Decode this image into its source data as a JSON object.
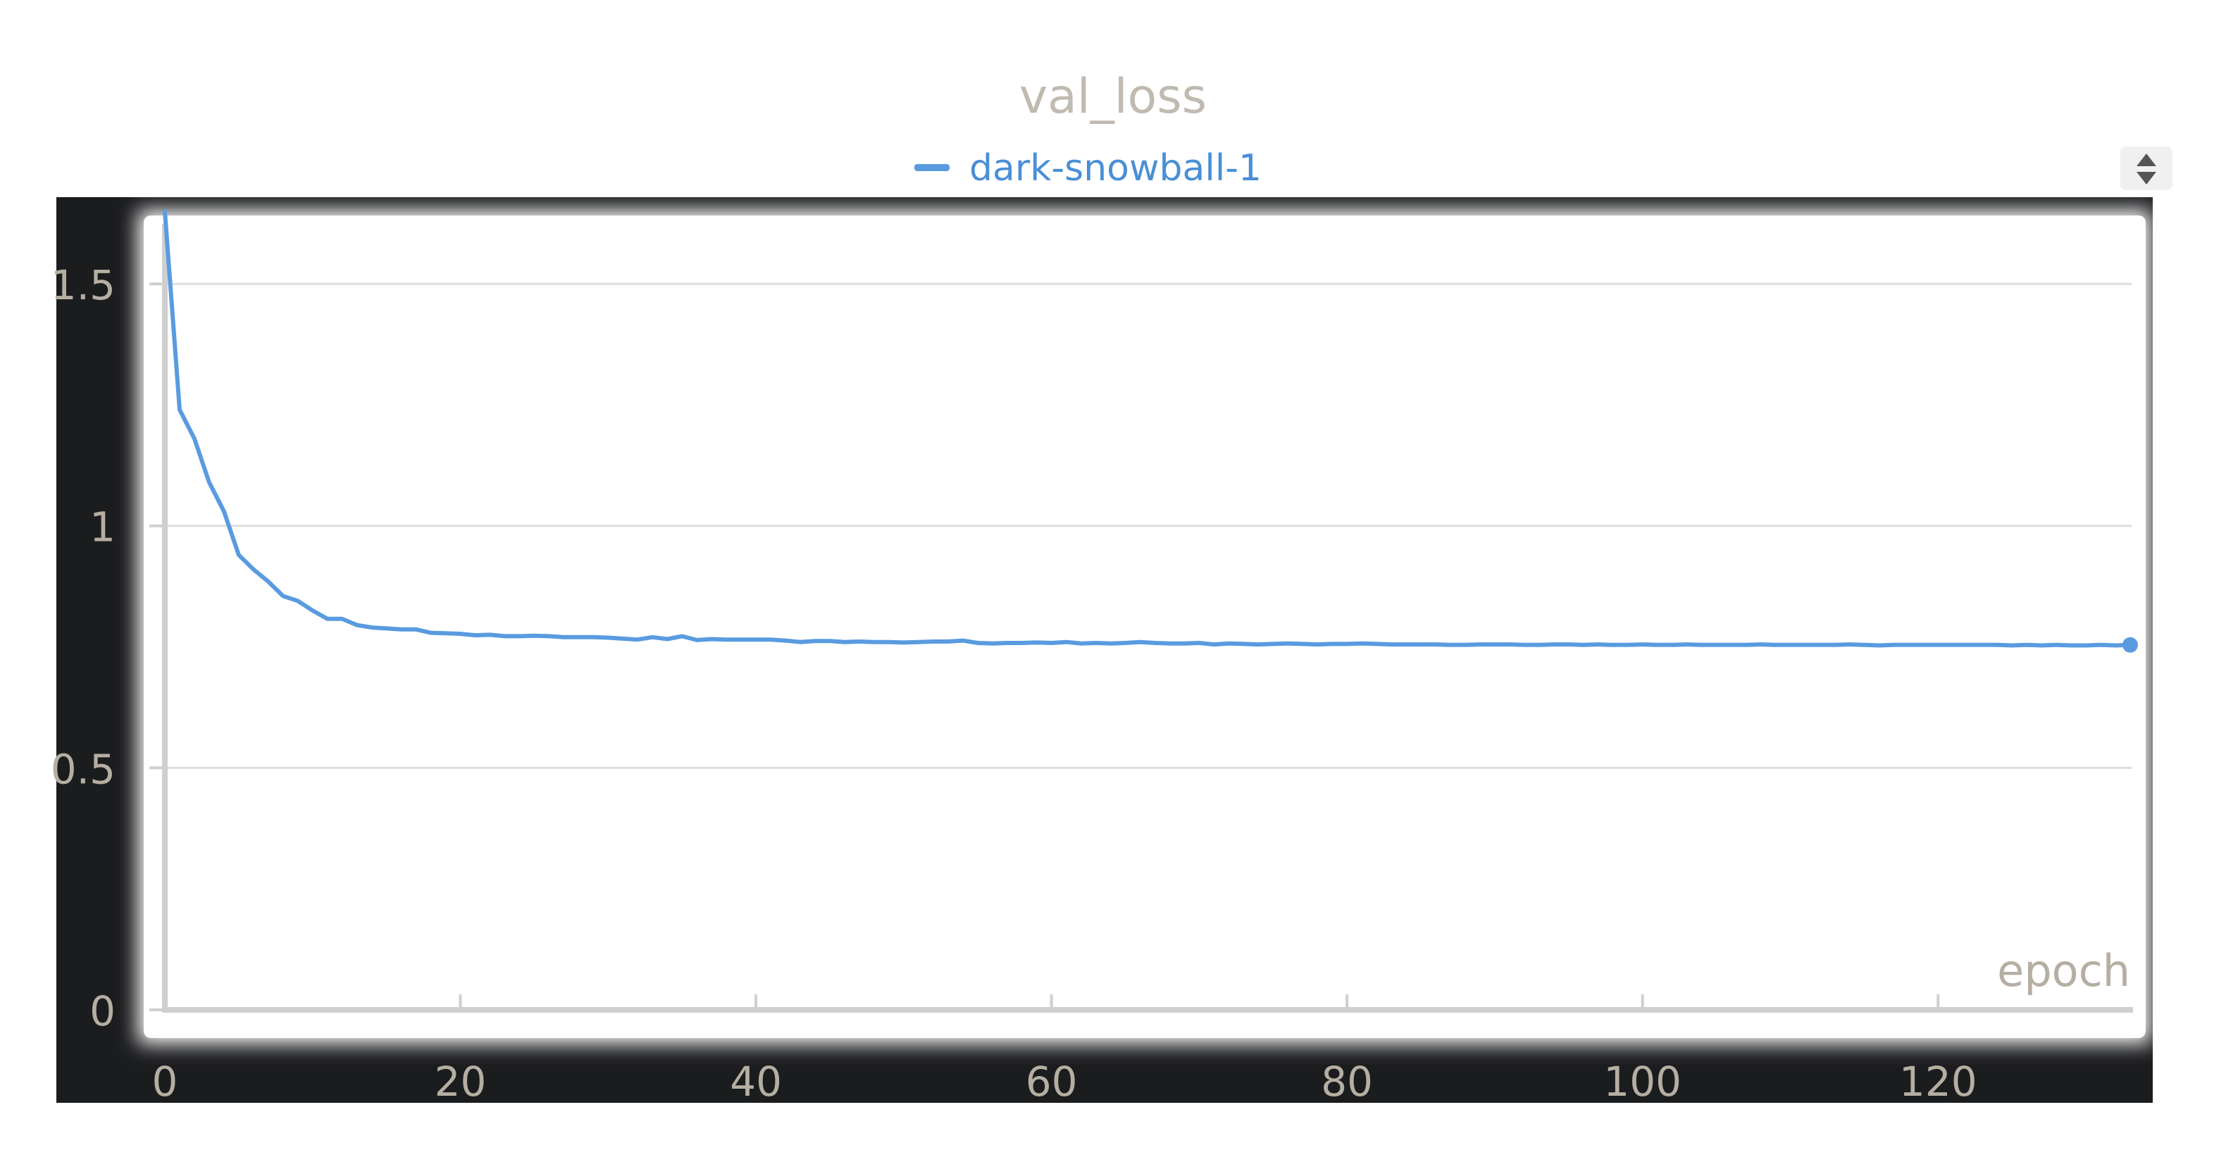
{
  "chart_data": {
    "type": "line",
    "title": "val_loss",
    "xlabel": "epoch",
    "ylabel": "",
    "xlim": [
      0,
      133
    ],
    "ylim": [
      0,
      1.65
    ],
    "xticks": [
      0,
      20,
      40,
      60,
      80,
      100,
      120
    ],
    "yticks": [
      0,
      0.5,
      1,
      1.5
    ],
    "xtick_labels": [
      "0",
      "20",
      "40",
      "60",
      "80",
      "100",
      "120"
    ],
    "ytick_labels": [
      "0",
      "0.5",
      "1",
      "1.5"
    ],
    "grid": true,
    "legend": "top-center",
    "series": [
      {
        "name": "dark-snowball-1",
        "color": "#5a9be0",
        "x": [
          0,
          1,
          2,
          3,
          4,
          5,
          6,
          7,
          8,
          9,
          10,
          11,
          12,
          13,
          14,
          15,
          16,
          17,
          18,
          19,
          20,
          21,
          22,
          23,
          24,
          25,
          26,
          27,
          28,
          29,
          30,
          31,
          32,
          33,
          34,
          35,
          36,
          37,
          38,
          39,
          40,
          41,
          42,
          43,
          44,
          45,
          46,
          47,
          48,
          49,
          50,
          51,
          52,
          53,
          54,
          55,
          56,
          57,
          58,
          59,
          60,
          61,
          62,
          63,
          64,
          65,
          66,
          67,
          68,
          69,
          70,
          71,
          72,
          73,
          74,
          75,
          76,
          77,
          78,
          79,
          80,
          81,
          82,
          83,
          84,
          85,
          86,
          87,
          88,
          89,
          90,
          91,
          92,
          93,
          94,
          95,
          96,
          97,
          98,
          99,
          100,
          101,
          102,
          103,
          104,
          105,
          106,
          107,
          108,
          109,
          110,
          111,
          112,
          113,
          114,
          115,
          116,
          117,
          118,
          119,
          120,
          121,
          122,
          123,
          124,
          125,
          126,
          127,
          128,
          129,
          130,
          131,
          132,
          133
        ],
        "y": [
          1.65,
          1.24,
          1.18,
          1.09,
          1.03,
          0.94,
          0.91,
          0.885,
          0.855,
          0.845,
          0.825,
          0.808,
          0.808,
          0.795,
          0.79,
          0.788,
          0.786,
          0.786,
          0.779,
          0.778,
          0.777,
          0.774,
          0.775,
          0.772,
          0.772,
          0.773,
          0.772,
          0.77,
          0.77,
          0.77,
          0.769,
          0.767,
          0.765,
          0.77,
          0.766,
          0.772,
          0.764,
          0.766,
          0.765,
          0.765,
          0.765,
          0.765,
          0.763,
          0.76,
          0.762,
          0.762,
          0.76,
          0.761,
          0.76,
          0.76,
          0.759,
          0.76,
          0.761,
          0.761,
          0.763,
          0.758,
          0.757,
          0.758,
          0.758,
          0.759,
          0.758,
          0.76,
          0.757,
          0.758,
          0.757,
          0.758,
          0.76,
          0.758,
          0.757,
          0.757,
          0.758,
          0.755,
          0.757,
          0.756,
          0.755,
          0.756,
          0.757,
          0.756,
          0.755,
          0.756,
          0.756,
          0.757,
          0.756,
          0.755,
          0.755,
          0.755,
          0.755,
          0.754,
          0.754,
          0.755,
          0.755,
          0.755,
          0.754,
          0.754,
          0.755,
          0.755,
          0.754,
          0.755,
          0.754,
          0.754,
          0.755,
          0.754,
          0.754,
          0.755,
          0.754,
          0.754,
          0.754,
          0.754,
          0.755,
          0.754,
          0.754,
          0.754,
          0.754,
          0.754,
          0.755,
          0.754,
          0.753,
          0.754,
          0.754,
          0.754,
          0.754,
          0.754,
          0.754,
          0.754,
          0.754,
          0.753,
          0.754,
          0.753,
          0.754,
          0.753,
          0.753,
          0.754,
          0.753,
          0.754
        ]
      }
    ]
  },
  "ui": {
    "colors": {
      "background": "#ffffff",
      "frame": "#1b1c1e",
      "grid": "#dddddd",
      "axis": "#cfcfcf",
      "tick_text": "#b5aea2",
      "title_text": "#c0bab0",
      "legend_text": "#4a8fd6"
    },
    "icons": {
      "scroll_control": "up-down-arrows-icon"
    }
  }
}
